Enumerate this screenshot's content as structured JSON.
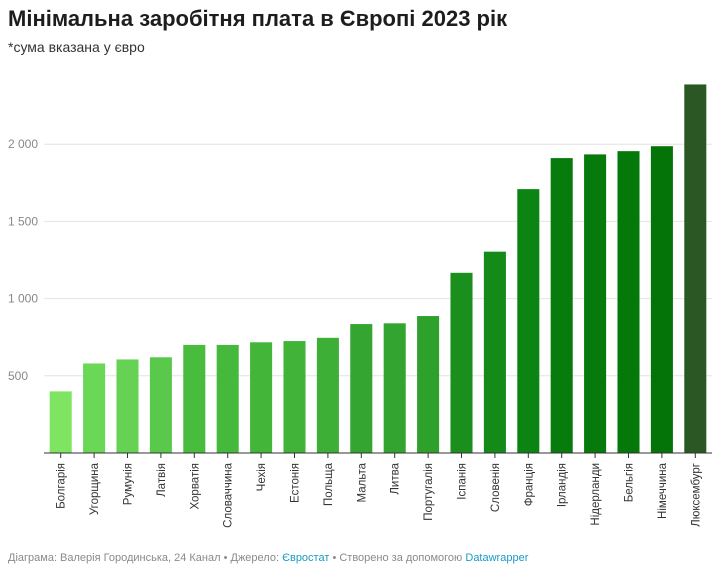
{
  "chart_data": {
    "type": "bar",
    "title": "Мінімальна заробітня плата в Європі 2023 рік",
    "subtitle": "*сума вказана у євро",
    "categories": [
      "Болгарія",
      "Угорщина",
      "Румунія",
      "Латвія",
      "Хорватія",
      "Словаччина",
      "Чехія",
      "Естонія",
      "Польща",
      "Мальта",
      "Литва",
      "Португалія",
      "Іспанія",
      "Словенія",
      "Франція",
      "Ірландія",
      "Нідерланди",
      "Бельгія",
      "Німеччина",
      "Люксембург"
    ],
    "values": [
      399,
      580,
      606,
      620,
      700,
      700,
      717,
      725,
      746,
      835,
      840,
      887,
      1167,
      1304,
      1709,
      1910,
      1934,
      1955,
      1987,
      2387
    ],
    "ylim": [
      0,
      2500
    ],
    "yticks": [
      500,
      1000,
      1500,
      2000
    ],
    "ytick_labels": [
      "500",
      "1 000",
      "1 500",
      "2 000"
    ],
    "grid": true,
    "xlabel": "",
    "ylabel": "",
    "colors": [
      "#7ee461",
      "#6bd756",
      "#66d253",
      "#59c84b",
      "#49bc3e",
      "#45b93b",
      "#43b63a",
      "#41b339",
      "#3daf37",
      "#33a530",
      "#32a42f",
      "#2ea12c",
      "#1a8f1e",
      "#148a19",
      "#0c8413",
      "#077c0d",
      "#067a0b",
      "#05780a",
      "#047308",
      "#2b5724"
    ]
  },
  "footer": {
    "prefix": "Діаграма: Валерія Городинська, 24 Канал • Джерело: ",
    "source": "Євростат",
    "middle": " • Створено за допомогою ",
    "tool": "Datawrapper"
  }
}
